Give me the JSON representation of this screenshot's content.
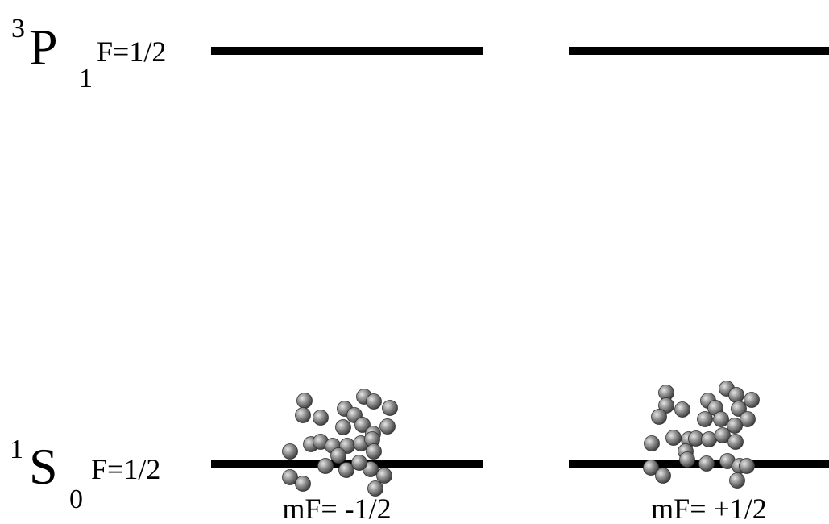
{
  "levels": [
    {
      "superscript": "3",
      "letter": "P",
      "subscript": "1",
      "F": "F=1/2"
    },
    {
      "superscript": "1",
      "letter": "S",
      "subscript": "0",
      "F": "F=1/2"
    }
  ],
  "sublevels": [
    "mF= -1/2",
    "mF= +1/2"
  ]
}
